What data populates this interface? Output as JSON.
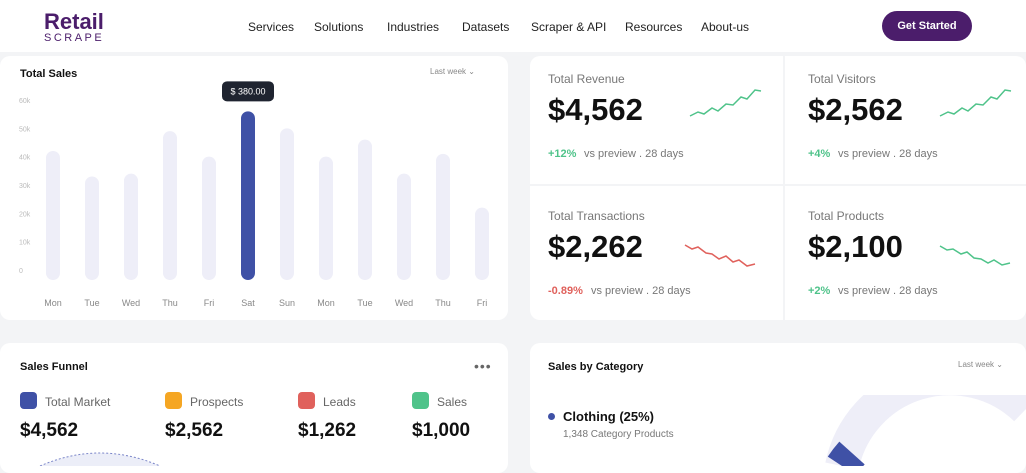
{
  "header": {
    "logo_top": "Retail",
    "logo_bottom": "SCRAPE",
    "nav": [
      "Services",
      "Solutions",
      "Industries",
      "Datasets",
      "Scraper & API",
      "Resources",
      "About-us"
    ],
    "cta": "Get Started"
  },
  "chart_data": {
    "type": "bar",
    "title": "Total Sales",
    "filter": "Last week",
    "annotation": "$ 380.00",
    "categories": [
      "Mon",
      "Tue",
      "Wed",
      "Thu",
      "Fri",
      "Sat",
      "Sun",
      "Mon",
      "Tue",
      "Wed",
      "Thu",
      "Fri"
    ],
    "values": [
      42000,
      33000,
      34000,
      49000,
      40000,
      56000,
      50000,
      40000,
      46000,
      34000,
      41000,
      22000
    ],
    "colors": [
      "#eeeef8",
      "#eeeef8",
      "#eeeef8",
      "#eeeef8",
      "#eeeef8",
      "#3f51a6",
      "#eeeef8",
      "#eeeef8",
      "#eeeef8",
      "#eeeef8",
      "#eeeef8",
      "#eeeef8"
    ],
    "ylim": [
      0,
      60000
    ],
    "yticks": [
      {
        "value": 60000,
        "label": "60k"
      },
      {
        "value": 50000,
        "label": "50k"
      },
      {
        "value": 40000,
        "label": "40k"
      },
      {
        "value": 30000,
        "label": "30k"
      },
      {
        "value": 20000,
        "label": "20k"
      },
      {
        "value": 10000,
        "label": "10k"
      },
      0
    ],
    "grid": false
  },
  "stats": [
    {
      "label": "Total Revenue",
      "value": "$4,562",
      "change": "+12%",
      "note": "vs preview . 28 days"
    },
    {
      "label": "Total Visitors",
      "value": "$2,562",
      "change": "+4%",
      "note": "vs preview . 28 days"
    },
    {
      "label": "Total Transactions",
      "value": "$2,262",
      "change": "-0.89%",
      "note": "vs preview . 28 days"
    },
    {
      "label": "Total Products",
      "value": "$2,100",
      "change": "+2%",
      "note": "vs preview . 28 days"
    }
  ],
  "funnel": {
    "title": "Sales Funnel",
    "items": [
      {
        "label": "Total Market",
        "value": "$4,562"
      },
      {
        "label": "Prospects",
        "value": "$2,562"
      },
      {
        "label": "Leads",
        "value": "$1,262"
      },
      {
        "label": "Sales",
        "value": "$1,000"
      }
    ]
  },
  "category": {
    "title": "Sales by Category",
    "filter": "Last week",
    "item": "Clothing (25%)",
    "detail": "1,348 Category Products"
  }
}
